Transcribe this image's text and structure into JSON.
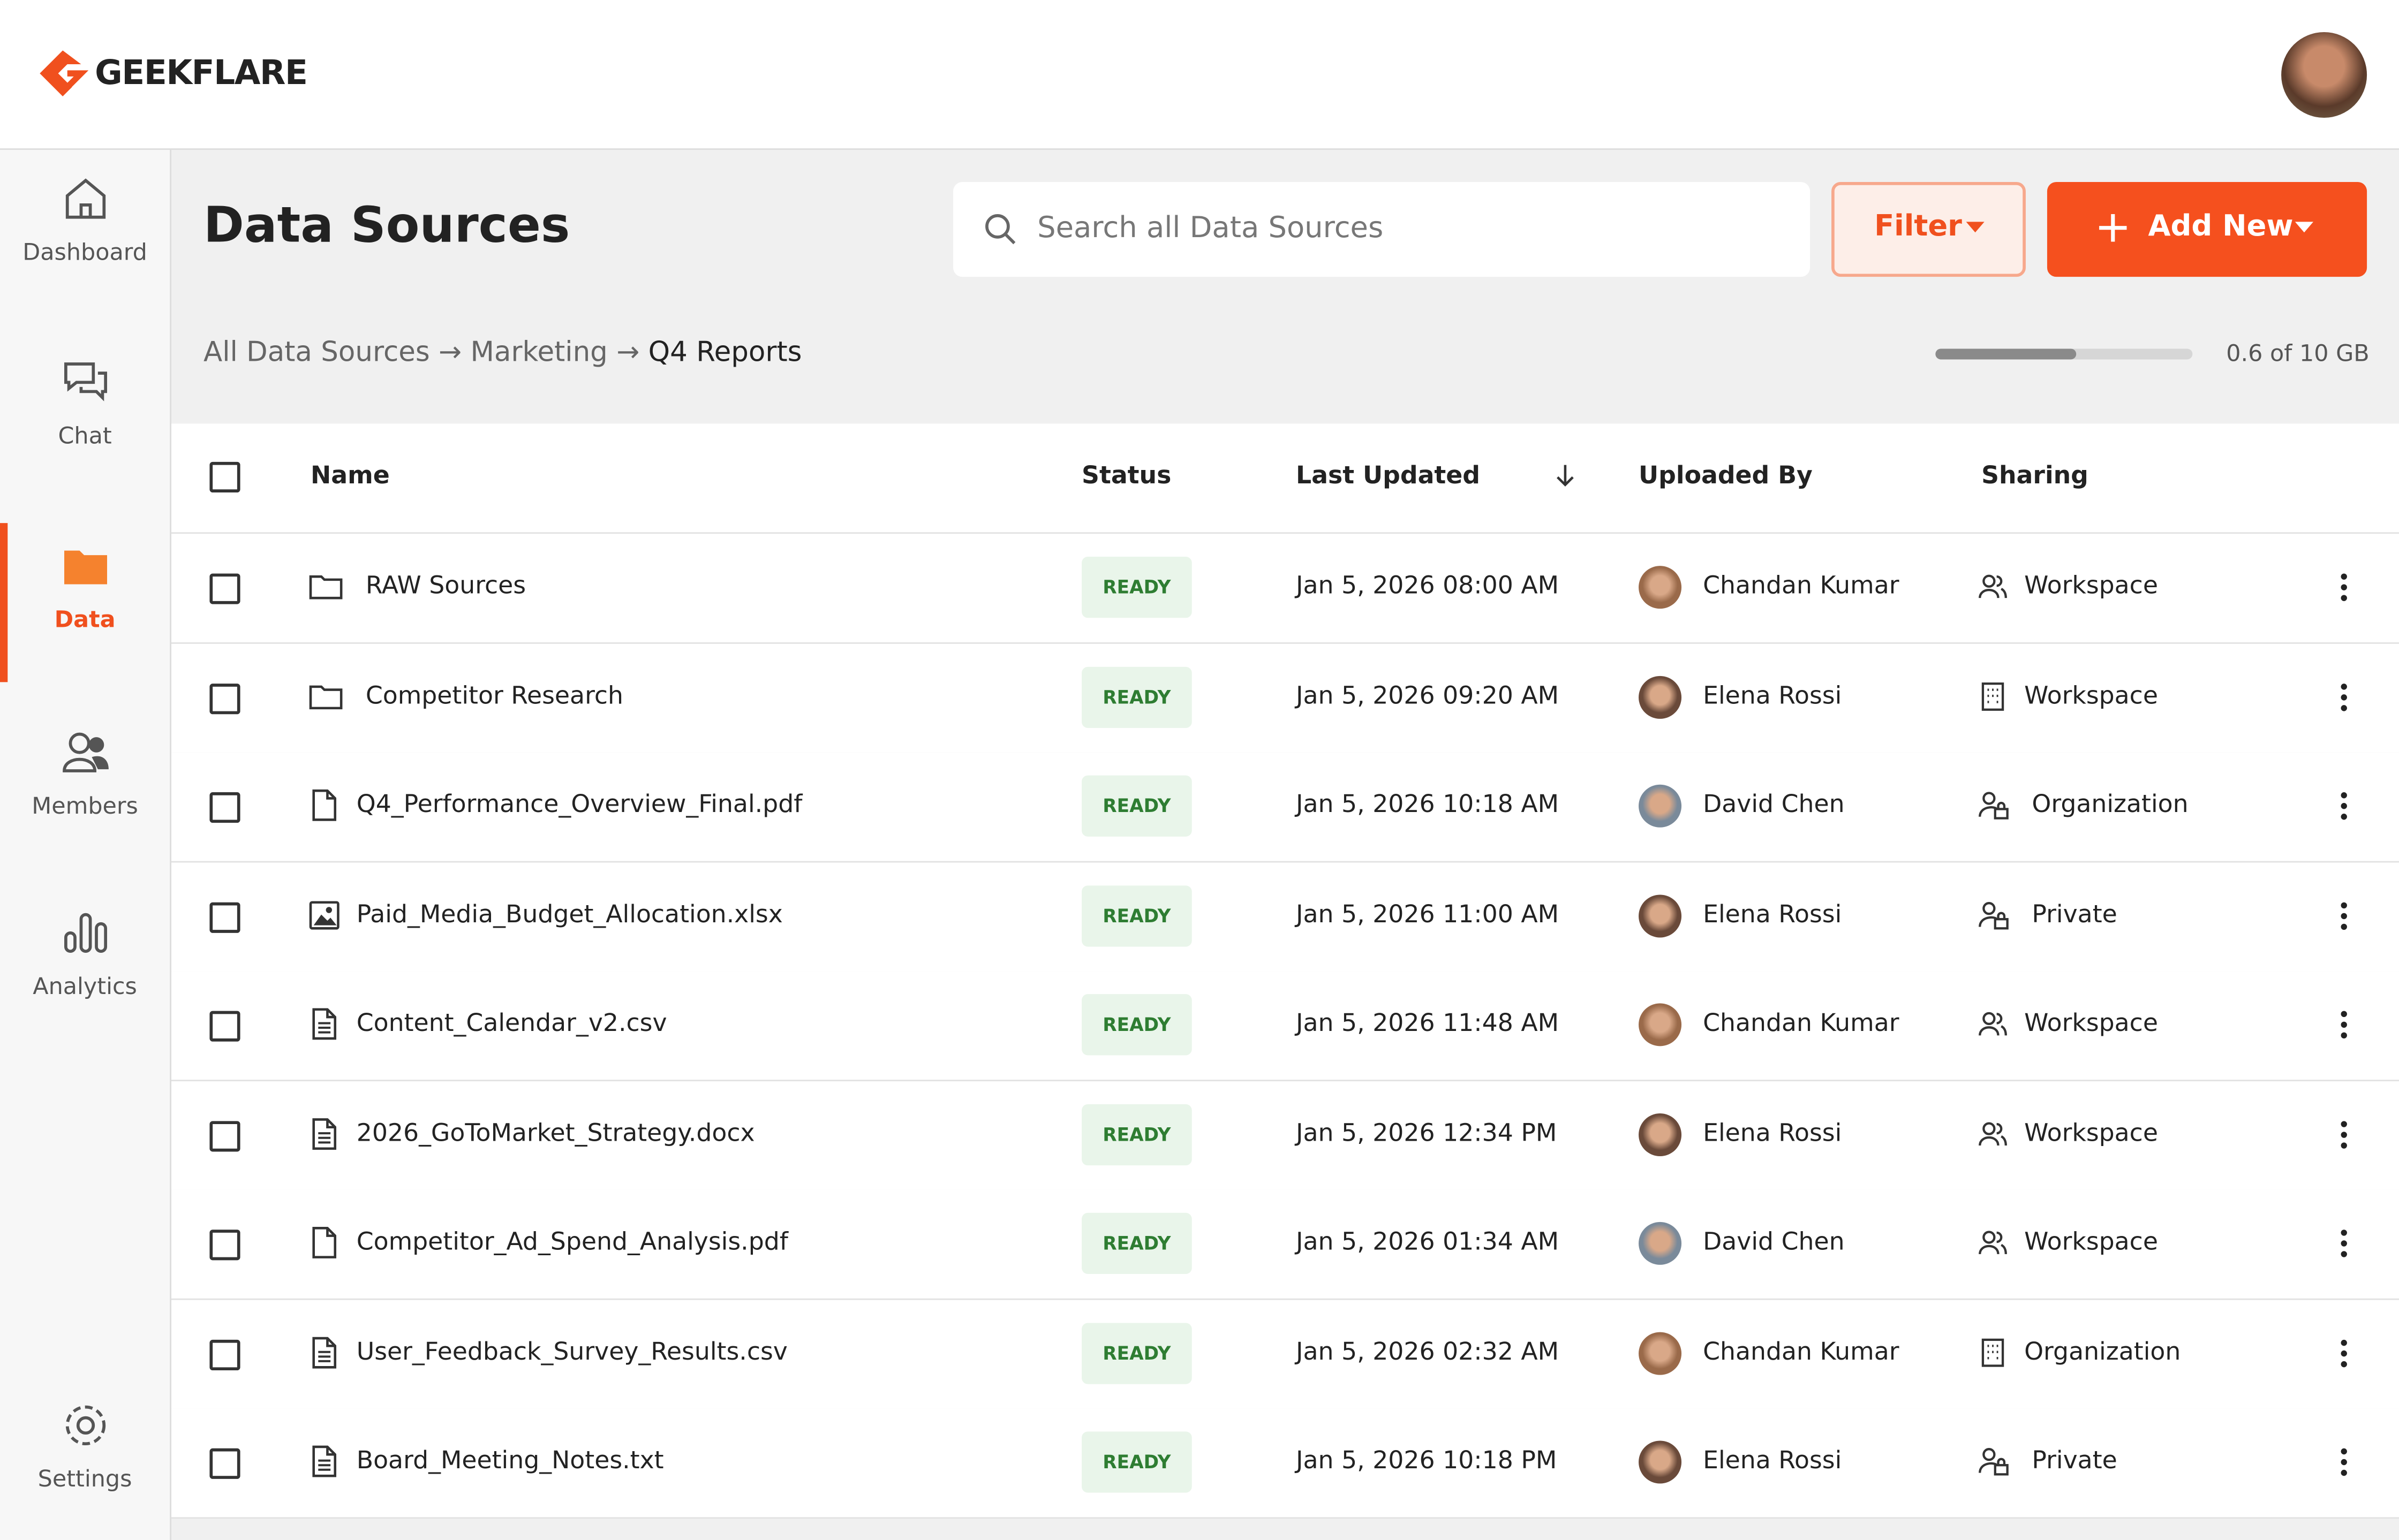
{
  "header": {
    "brand": "GEEKFLARE"
  },
  "nav": [
    "Dashboard",
    "Chat",
    "Data",
    "Members",
    "Analytics",
    "Settings"
  ],
  "page": {
    "title": "Data Sources",
    "search_placeholder": "Search all Data Sources",
    "filter": "Filter",
    "add_new": "Add New",
    "breadcrumb": [
      "All Data Sources",
      "Marketing",
      "Q4 Reports"
    ],
    "storage": "0.6 of 10 GB"
  },
  "table": {
    "columns": [
      "Name",
      "Status",
      "Last Updated",
      "Uploaded By",
      "Sharing"
    ],
    "rows": [
      [
        "RAW Sources",
        "READY",
        "Jan 5, 2026 08:00 AM",
        "Chandan Kumar",
        "Workspace"
      ],
      [
        "Competitor Research",
        "READY",
        "Jan 5, 2026 09:20 AM",
        "Elena Rossi",
        "Workspace"
      ],
      [
        "Q4_Performance_Overview_Final.pdf",
        "READY",
        "Jan 5, 2026 10:18 AM",
        "David Chen",
        "Organization"
      ],
      [
        "Paid_Media_Budget_Allocation.xlsx",
        "READY",
        "Jan 5, 2026 11:00 AM",
        "Elena Rossi",
        "Private"
      ],
      [
        "Content_Calendar_v2.csv",
        "READY",
        "Jan 5, 2026 11:48 AM",
        "Chandan Kumar",
        "Workspace"
      ],
      [
        "2026_GoToMarket_Strategy.docx",
        "READY",
        "Jan 5, 2026 12:34 PM",
        "Elena Rossi",
        "Workspace"
      ],
      [
        "Competitor_Ad_Spend_Analysis.pdf",
        "READY",
        "Jan 5, 2026 01:34 AM",
        "David Chen",
        "Workspace"
      ],
      [
        "User_Feedback_Survey_Results.csv",
        "READY",
        "Jan 5, 2026 02:32 AM",
        "Chandan Kumar",
        "Organization"
      ],
      [
        "Board_Meeting_Notes.txt",
        "READY",
        "Jan 5, 2026 10:18 PM",
        "Elena Rossi",
        "Private"
      ]
    ]
  }
}
